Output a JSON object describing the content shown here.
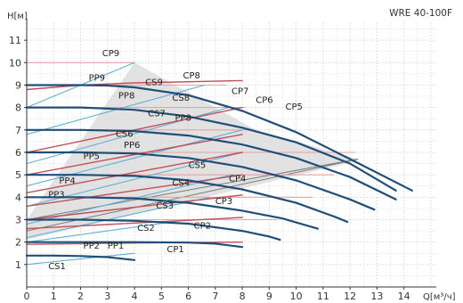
{
  "chart_data": {
    "type": "line",
    "title": "WRE 40-100F",
    "ylabel": "H[м]",
    "xlabel": "Q[м³/ч]",
    "xlim": [
      0,
      15.2
    ],
    "ylim": [
      0,
      11.8
    ],
    "xticks": [
      "0",
      "1",
      "2",
      "3",
      "4",
      "5",
      "6",
      "7",
      "8",
      "9",
      "10",
      "11",
      "12",
      "13",
      "14"
    ],
    "yticks": [
      "1",
      "2",
      "3",
      "4",
      "5",
      "6",
      "7",
      "8",
      "9",
      "10",
      "11"
    ],
    "grid": true,
    "colors": {
      "pump_curve": "#1f4e79",
      "cp_line": "#e8a2a2",
      "pp_line": "#c0505a",
      "cs_line": "#5fb0d8",
      "ref_line": "#7a7a7a",
      "region_fill": "#d8d8d8",
      "grid": "#cfcfcf"
    },
    "operating_region": {
      "name": "",
      "points": [
        [
          4.0,
          10.0
        ],
        [
          8.5,
          7.0
        ],
        [
          12.3,
          5.7
        ],
        [
          12.2,
          5.6
        ],
        [
          0.0,
          2.1
        ],
        [
          0.0,
          3.0
        ],
        [
          4.0,
          10.0
        ]
      ]
    },
    "reference_lines": [
      {
        "name": "",
        "points": [
          [
            0.0,
            2.5
          ],
          [
            12.3,
            5.7
          ]
        ]
      },
      {
        "name": "",
        "points": [
          [
            0.0,
            3.0
          ],
          [
            12.3,
            5.7
          ]
        ]
      }
    ],
    "series": [
      {
        "name": "",
        "role": "pump_curve",
        "points": [
          [
            0,
            1.4
          ],
          [
            1,
            1.4
          ],
          [
            2,
            1.38
          ],
          [
            3,
            1.33
          ],
          [
            4,
            1.2
          ]
        ]
      },
      {
        "name": "",
        "role": "pump_curve",
        "points": [
          [
            0,
            2.0
          ],
          [
            2,
            2.0
          ],
          [
            4,
            2.0
          ],
          [
            6,
            1.98
          ],
          [
            7,
            1.93
          ],
          [
            8,
            1.78
          ]
        ]
      },
      {
        "name": "",
        "role": "pump_curve",
        "points": [
          [
            0,
            3.0
          ],
          [
            2,
            3.0
          ],
          [
            4,
            2.95
          ],
          [
            6,
            2.82
          ],
          [
            8,
            2.5
          ],
          [
            9,
            2.25
          ],
          [
            9.4,
            2.1
          ]
        ]
      },
      {
        "name": "",
        "role": "pump_curve",
        "points": [
          [
            0,
            4.0
          ],
          [
            2,
            4.0
          ],
          [
            4,
            3.95
          ],
          [
            6,
            3.75
          ],
          [
            8,
            3.4
          ],
          [
            9.5,
            3.05
          ],
          [
            10.8,
            2.6
          ]
        ]
      },
      {
        "name": "",
        "role": "pump_curve",
        "points": [
          [
            0,
            5.0
          ],
          [
            2,
            5.0
          ],
          [
            4,
            4.95
          ],
          [
            6,
            4.75
          ],
          [
            8,
            4.35
          ],
          [
            10,
            3.75
          ],
          [
            11.5,
            3.1
          ],
          [
            11.9,
            2.9
          ]
        ]
      },
      {
        "name": "",
        "role": "pump_curve",
        "points": [
          [
            0,
            6.0
          ],
          [
            2,
            6.0
          ],
          [
            4,
            5.95
          ],
          [
            6,
            5.75
          ],
          [
            8,
            5.35
          ],
          [
            10,
            4.75
          ],
          [
            12,
            3.9
          ],
          [
            12.9,
            3.45
          ]
        ]
      },
      {
        "name": "",
        "role": "pump_curve",
        "points": [
          [
            0,
            7.0
          ],
          [
            2,
            7.0
          ],
          [
            4,
            6.95
          ],
          [
            6,
            6.75
          ],
          [
            8,
            6.35
          ],
          [
            10,
            5.75
          ],
          [
            12,
            4.9
          ],
          [
            13.7,
            3.9
          ]
        ]
      },
      {
        "name": "",
        "role": "pump_curve",
        "points": [
          [
            0,
            8.0
          ],
          [
            2,
            8.0
          ],
          [
            4,
            7.9
          ],
          [
            6,
            7.6
          ],
          [
            8,
            7.1
          ],
          [
            10,
            6.45
          ],
          [
            12,
            5.5
          ],
          [
            13.7,
            4.3
          ]
        ]
      },
      {
        "name": "",
        "role": "pump_curve",
        "points": [
          [
            0,
            9.0
          ],
          [
            2,
            9.0
          ],
          [
            3,
            8.98
          ],
          [
            4,
            8.9
          ],
          [
            6,
            8.55
          ],
          [
            8,
            7.85
          ],
          [
            10,
            6.9
          ],
          [
            12,
            5.7
          ],
          [
            14.3,
            4.3
          ]
        ]
      },
      {
        "name": "CP1",
        "role": "cp_line",
        "points": [
          [
            0.0,
            2.0
          ],
          [
            7.8,
            2.0
          ]
        ]
      },
      {
        "name": "CP2",
        "role": "cp_line",
        "points": [
          [
            0.0,
            3.0
          ],
          [
            9.3,
            3.0
          ]
        ]
      },
      {
        "name": "CP3",
        "role": "cp_line",
        "points": [
          [
            0.0,
            4.0
          ],
          [
            10.6,
            4.0
          ]
        ]
      },
      {
        "name": "CP4",
        "role": "cp_line",
        "points": [
          [
            0.0,
            5.0
          ],
          [
            11.4,
            5.0
          ]
        ]
      },
      {
        "name": "CP5",
        "role": "cp_line",
        "points": [
          [
            0.0,
            6.0
          ],
          [
            12.2,
            6.0
          ]
        ]
      },
      {
        "name": "CP6",
        "role": "cp_line",
        "points": [
          [
            0.0,
            7.0
          ],
          [
            8.2,
            7.0
          ]
        ]
      },
      {
        "name": "CP7",
        "role": "cp_line",
        "points": [
          [
            0.0,
            8.0
          ],
          [
            8.1,
            8.0
          ]
        ]
      },
      {
        "name": "CP8",
        "role": "cp_line",
        "points": [
          [
            0.0,
            9.0
          ],
          [
            7.4,
            9.0
          ]
        ]
      },
      {
        "name": "CP9",
        "role": "cp_line",
        "points": [
          [
            0.0,
            10.0
          ],
          [
            4.0,
            10.0
          ]
        ]
      },
      {
        "name": "PP1",
        "role": "pp_line",
        "points": [
          [
            0.0,
            1.9
          ],
          [
            4.0,
            1.96
          ],
          [
            8.0,
            2.0
          ]
        ]
      },
      {
        "name": "PP2",
        "role": "pp_line",
        "points": [
          [
            0.0,
            2.6
          ],
          [
            4.0,
            2.85
          ],
          [
            8.0,
            3.1
          ]
        ]
      },
      {
        "name": "PP3",
        "role": "pp_line",
        "points": [
          [
            0.0,
            3.0
          ],
          [
            4.0,
            3.55
          ],
          [
            8.0,
            4.1
          ]
        ]
      },
      {
        "name": "PP4",
        "role": "pp_line",
        "points": [
          [
            0.0,
            3.6
          ],
          [
            4.0,
            4.3
          ],
          [
            8.0,
            5.0
          ]
        ]
      },
      {
        "name": "PP5",
        "role": "pp_line",
        "points": [
          [
            0.0,
            4.2
          ],
          [
            4.0,
            5.1
          ],
          [
            8.0,
            6.0
          ]
        ]
      },
      {
        "name": "PP6",
        "role": "pp_line",
        "points": [
          [
            0.0,
            5.0
          ],
          [
            4.0,
            5.9
          ],
          [
            8.0,
            6.8
          ]
        ]
      },
      {
        "name": "PP8",
        "role": "pp_line",
        "points": [
          [
            0.0,
            6.0
          ],
          [
            4.0,
            7.0
          ],
          [
            8.0,
            8.0
          ]
        ]
      },
      {
        "name": "PP9",
        "role": "pp_line",
        "points": [
          [
            0.0,
            8.8
          ],
          [
            2.0,
            9.0
          ],
          [
            4.0,
            9.1
          ],
          [
            8.0,
            9.2
          ]
        ]
      },
      {
        "name": "CS1",
        "role": "cs_line",
        "points": [
          [
            0.0,
            1.0
          ],
          [
            4.0,
            1.5
          ]
        ]
      },
      {
        "name": "CS2",
        "role": "cs_line",
        "points": [
          [
            0.0,
            2.0
          ],
          [
            6.0,
            3.0
          ]
        ]
      },
      {
        "name": "CS3",
        "role": "cs_line",
        "points": [
          [
            0.0,
            2.2
          ],
          [
            6.8,
            4.0
          ]
        ]
      },
      {
        "name": "CS4",
        "role": "cs_line",
        "points": [
          [
            0.0,
            2.8
          ],
          [
            7.6,
            5.0
          ]
        ]
      },
      {
        "name": "CS5",
        "role": "cs_line",
        "points": [
          [
            0.0,
            3.6
          ],
          [
            8.0,
            6.0
          ]
        ]
      },
      {
        "name": "CS6",
        "role": "cs_line",
        "points": [
          [
            0.0,
            4.5
          ],
          [
            8.0,
            7.0
          ]
        ]
      },
      {
        "name": "CS7",
        "role": "cs_line",
        "points": [
          [
            0.0,
            5.5
          ],
          [
            7.5,
            8.0
          ]
        ]
      },
      {
        "name": "CS8",
        "role": "cs_line",
        "points": [
          [
            0.0,
            6.8
          ],
          [
            6.6,
            9.0
          ]
        ]
      },
      {
        "name": "CS9",
        "role": "cs_line",
        "points": [
          [
            0.0,
            8.0
          ],
          [
            4.0,
            10.0
          ]
        ]
      }
    ],
    "labels": [
      {
        "text": "CP9",
        "x": 2.8,
        "y": 10.3
      },
      {
        "text": "CP8",
        "x": 5.8,
        "y": 9.3
      },
      {
        "text": "CP7",
        "x": 7.6,
        "y": 8.6
      },
      {
        "text": "CP6",
        "x": 8.5,
        "y": 8.2
      },
      {
        "text": "CP5",
        "x": 9.6,
        "y": 7.9
      },
      {
        "text": "CP4",
        "x": 7.5,
        "y": 4.7
      },
      {
        "text": "CP3",
        "x": 7.0,
        "y": 3.7
      },
      {
        "text": "CP2",
        "x": 6.2,
        "y": 2.6
      },
      {
        "text": "CP1",
        "x": 5.2,
        "y": 1.55
      },
      {
        "text": "PP9",
        "x": 2.3,
        "y": 9.2
      },
      {
        "text": "PP8",
        "x": 3.4,
        "y": 8.4
      },
      {
        "text": "PP8",
        "x": 5.5,
        "y": 7.4
      },
      {
        "text": "PP6",
        "x": 3.6,
        "y": 6.2
      },
      {
        "text": "PP5",
        "x": 2.1,
        "y": 5.7
      },
      {
        "text": "PP4",
        "x": 1.2,
        "y": 4.6
      },
      {
        "text": "PP3",
        "x": 0.8,
        "y": 4.0
      },
      {
        "text": "PP2",
        "x": 2.1,
        "y": 1.7
      },
      {
        "text": "PP1",
        "x": 3.0,
        "y": 1.7
      },
      {
        "text": "CS9",
        "x": 4.4,
        "y": 9.0
      },
      {
        "text": "CS8",
        "x": 5.4,
        "y": 8.3
      },
      {
        "text": "CS7",
        "x": 4.5,
        "y": 7.6
      },
      {
        "text": "CS6",
        "x": 3.3,
        "y": 6.7
      },
      {
        "text": "CS5",
        "x": 6.0,
        "y": 5.3
      },
      {
        "text": "CS4",
        "x": 5.4,
        "y": 4.5
      },
      {
        "text": "CS3",
        "x": 4.8,
        "y": 3.5
      },
      {
        "text": "CS2",
        "x": 4.1,
        "y": 2.5
      },
      {
        "text": "CS1",
        "x": 0.8,
        "y": 0.8
      }
    ]
  }
}
